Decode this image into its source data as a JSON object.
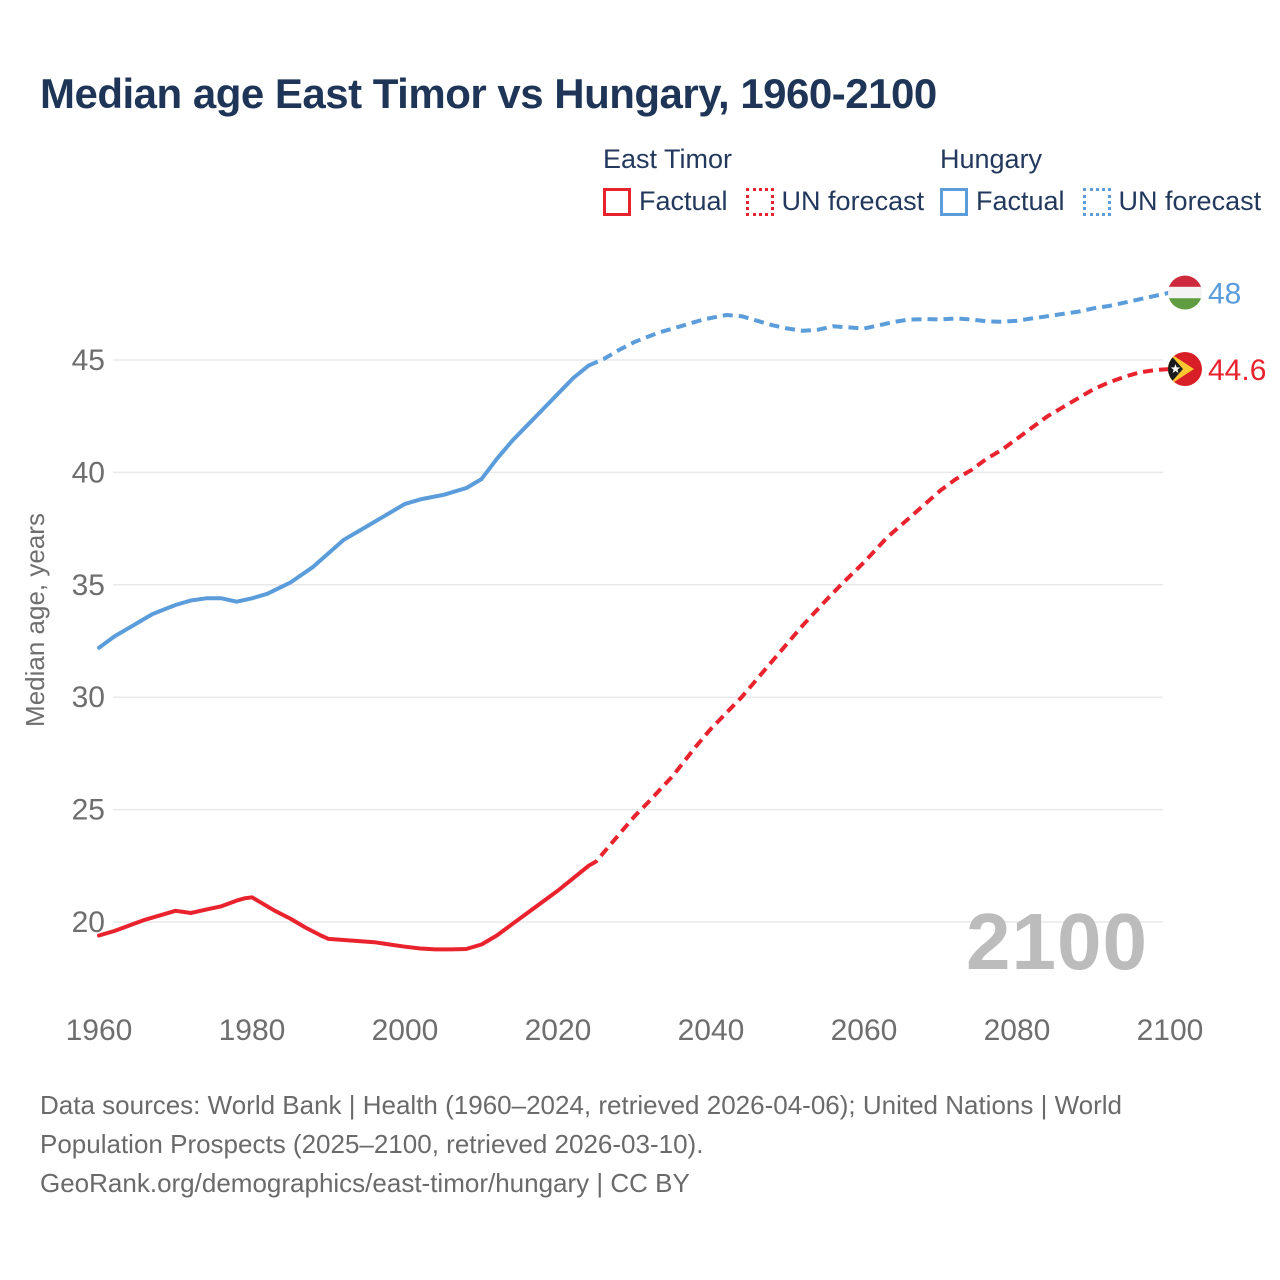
{
  "title": "Median age East Timor vs Hungary, 1960-2100",
  "legend": {
    "east_timor": {
      "header": "East Timor",
      "factual": "Factual",
      "forecast": "UN forecast"
    },
    "hungary": {
      "header": "Hungary",
      "factual": "Factual",
      "forecast": "UN forecast"
    }
  },
  "watermark": "2100",
  "footer": {
    "line1": "Data sources: World Bank | Health (1960–2024, retrieved 2026-04-06); United Nations | World",
    "line2": "Population Prospects (2025–2100, retrieved 2026-03-10).",
    "line3": "GeoRank.org/demographics/east-timor/hungary | CC BY"
  },
  "colors": {
    "east_timor": "#e9232d",
    "hungary": "#5b9cda",
    "title": "#1e3557",
    "navy": "#22395d",
    "axis_text": "#6e6e6e",
    "grid": "#e9e9e9",
    "watermark": "#bcbcbc",
    "flag_hu_red": "#cd2a3e",
    "flag_hu_white": "#f4f4f4",
    "flag_hu_green": "#5f9c42",
    "flag_tl_red": "#d81e26",
    "flag_tl_yellow": "#fdc72f",
    "flag_tl_black": "#1c1c1c",
    "flag_tl_white": "#ffffff"
  },
  "chart_data": {
    "type": "line",
    "title": "Median age East Timor vs Hungary, 1960-2100",
    "xlabel": "",
    "ylabel": "Median age, years",
    "xlim": [
      1960,
      2100
    ],
    "ylim": [
      17.5,
      48.5
    ],
    "xticks": [
      1960,
      1980,
      2000,
      2020,
      2040,
      2060,
      2080,
      2100
    ],
    "yticks": [
      20,
      25,
      30,
      35,
      40,
      45
    ],
    "grid": "horizontal",
    "legend_position": "top",
    "series": [
      {
        "name": "East Timor — Factual",
        "country": "East Timor",
        "style": "solid",
        "color_key": "east_timor",
        "points": [
          [
            1960,
            19.4
          ],
          [
            1962,
            19.6
          ],
          [
            1964,
            19.85
          ],
          [
            1966,
            20.1
          ],
          [
            1968,
            20.3
          ],
          [
            1970,
            20.5
          ],
          [
            1971,
            20.45
          ],
          [
            1972,
            20.4
          ],
          [
            1974,
            20.55
          ],
          [
            1976,
            20.7
          ],
          [
            1978,
            20.95
          ],
          [
            1979,
            21.05
          ],
          [
            1980,
            21.1
          ],
          [
            1981,
            20.9
          ],
          [
            1983,
            20.5
          ],
          [
            1985,
            20.15
          ],
          [
            1987,
            19.75
          ],
          [
            1989,
            19.4
          ],
          [
            1990,
            19.25
          ],
          [
            1992,
            19.2
          ],
          [
            1994,
            19.15
          ],
          [
            1996,
            19.1
          ],
          [
            1998,
            19.0
          ],
          [
            2000,
            18.9
          ],
          [
            2002,
            18.82
          ],
          [
            2004,
            18.78
          ],
          [
            2006,
            18.78
          ],
          [
            2008,
            18.8
          ],
          [
            2010,
            19.0
          ],
          [
            2012,
            19.4
          ],
          [
            2014,
            19.9
          ],
          [
            2016,
            20.4
          ],
          [
            2018,
            20.9
          ],
          [
            2020,
            21.4
          ],
          [
            2022,
            21.95
          ],
          [
            2024,
            22.5
          ]
        ]
      },
      {
        "name": "East Timor — UN forecast",
        "country": "East Timor",
        "style": "dashed",
        "color_key": "east_timor",
        "points": [
          [
            2024,
            22.5
          ],
          [
            2025,
            22.7
          ],
          [
            2027,
            23.5
          ],
          [
            2030,
            24.7
          ],
          [
            2032,
            25.4
          ],
          [
            2035,
            26.5
          ],
          [
            2038,
            27.8
          ],
          [
            2040,
            28.6
          ],
          [
            2042,
            29.3
          ],
          [
            2044,
            30.0
          ],
          [
            2046,
            30.8
          ],
          [
            2048,
            31.6
          ],
          [
            2050,
            32.4
          ],
          [
            2052,
            33.2
          ],
          [
            2055,
            34.3
          ],
          [
            2057,
            35.0
          ],
          [
            2060,
            36.0
          ],
          [
            2063,
            37.1
          ],
          [
            2065,
            37.7
          ],
          [
            2068,
            38.6
          ],
          [
            2070,
            39.2
          ],
          [
            2072,
            39.7
          ],
          [
            2074,
            40.1
          ],
          [
            2076,
            40.6
          ],
          [
            2078,
            41.0
          ],
          [
            2080,
            41.5
          ],
          [
            2082,
            42.0
          ],
          [
            2084,
            42.5
          ],
          [
            2086,
            42.9
          ],
          [
            2088,
            43.3
          ],
          [
            2090,
            43.7
          ],
          [
            2092,
            44.0
          ],
          [
            2094,
            44.25
          ],
          [
            2096,
            44.45
          ],
          [
            2098,
            44.55
          ],
          [
            2100,
            44.6
          ]
        ]
      },
      {
        "name": "Hungary — Factual",
        "country": "Hungary",
        "style": "solid",
        "color_key": "hungary",
        "points": [
          [
            1960,
            32.2
          ],
          [
            1962,
            32.7
          ],
          [
            1965,
            33.3
          ],
          [
            1967,
            33.7
          ],
          [
            1970,
            34.1
          ],
          [
            1972,
            34.3
          ],
          [
            1974,
            34.4
          ],
          [
            1976,
            34.4
          ],
          [
            1978,
            34.25
          ],
          [
            1980,
            34.4
          ],
          [
            1982,
            34.6
          ],
          [
            1985,
            35.1
          ],
          [
            1988,
            35.8
          ],
          [
            1990,
            36.4
          ],
          [
            1992,
            37.0
          ],
          [
            1995,
            37.6
          ],
          [
            1998,
            38.2
          ],
          [
            2000,
            38.6
          ],
          [
            2002,
            38.8
          ],
          [
            2005,
            39.0
          ],
          [
            2008,
            39.3
          ],
          [
            2010,
            39.7
          ],
          [
            2012,
            40.6
          ],
          [
            2014,
            41.4
          ],
          [
            2016,
            42.1
          ],
          [
            2018,
            42.8
          ],
          [
            2020,
            43.5
          ],
          [
            2022,
            44.2
          ],
          [
            2024,
            44.75
          ]
        ]
      },
      {
        "name": "Hungary — UN forecast",
        "country": "Hungary",
        "style": "dashed",
        "color_key": "hungary",
        "points": [
          [
            2024,
            44.75
          ],
          [
            2025,
            44.9
          ],
          [
            2026,
            45.05
          ],
          [
            2028,
            45.45
          ],
          [
            2030,
            45.8
          ],
          [
            2033,
            46.2
          ],
          [
            2036,
            46.5
          ],
          [
            2039,
            46.8
          ],
          [
            2042,
            47.0
          ],
          [
            2044,
            46.95
          ],
          [
            2046,
            46.75
          ],
          [
            2048,
            46.55
          ],
          [
            2050,
            46.4
          ],
          [
            2052,
            46.3
          ],
          [
            2054,
            46.35
          ],
          [
            2056,
            46.5
          ],
          [
            2058,
            46.45
          ],
          [
            2060,
            46.4
          ],
          [
            2062,
            46.55
          ],
          [
            2064,
            46.7
          ],
          [
            2066,
            46.8
          ],
          [
            2068,
            46.82
          ],
          [
            2070,
            46.8
          ],
          [
            2072,
            46.85
          ],
          [
            2074,
            46.8
          ],
          [
            2076,
            46.72
          ],
          [
            2078,
            46.7
          ],
          [
            2080,
            46.75
          ],
          [
            2082,
            46.85
          ],
          [
            2084,
            46.95
          ],
          [
            2086,
            47.05
          ],
          [
            2088,
            47.15
          ],
          [
            2090,
            47.3
          ],
          [
            2092,
            47.4
          ],
          [
            2094,
            47.55
          ],
          [
            2096,
            47.7
          ],
          [
            2098,
            47.85
          ],
          [
            2100,
            48.0
          ]
        ]
      }
    ],
    "end_markers": [
      {
        "country": "Hungary",
        "flag": "hungary-flag-icon",
        "value": 48,
        "label": "48",
        "color_key": "hungary"
      },
      {
        "country": "East Timor",
        "flag": "east-timor-flag-icon",
        "value": 44.6,
        "label": "44.6",
        "color_key": "east_timor"
      }
    ]
  }
}
